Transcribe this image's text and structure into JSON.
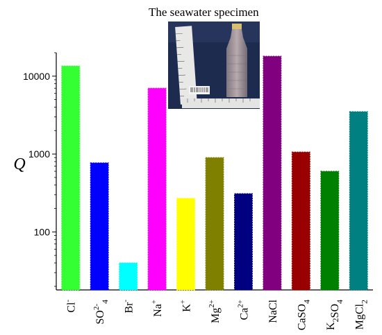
{
  "inset": {
    "title": "The seawater specimen"
  },
  "chart_data": {
    "type": "bar",
    "ylabel": "Q",
    "xlabel": "",
    "yscale": "log",
    "ylim": [
      18,
      20000
    ],
    "yticks": [
      {
        "value": 100,
        "label": "100"
      },
      {
        "value": 1000,
        "label": "1000"
      },
      {
        "value": 10000,
        "label": "10000"
      }
    ],
    "categories": [
      {
        "base": "Cl",
        "sup": "-",
        "sub": ""
      },
      {
        "base": "SO",
        "sup": "2-",
        "sub": "4"
      },
      {
        "base": "Br",
        "sup": "-",
        "sub": ""
      },
      {
        "base": "Na",
        "sup": "+",
        "sub": ""
      },
      {
        "base": "K",
        "sup": "+",
        "sub": ""
      },
      {
        "base": "Mg",
        "sup": "2+",
        "sub": ""
      },
      {
        "base": "Ca",
        "sup": "2+",
        "sub": ""
      },
      {
        "base": "NaCl",
        "sup": "",
        "sub": ""
      },
      {
        "base": "CaSO",
        "sup": "",
        "sub": "4"
      },
      {
        "base": "K2SO4",
        "sup": "",
        "sub": ""
      },
      {
        "base": "MgCl",
        "sup": "",
        "sub": "2"
      }
    ],
    "values": [
      13500,
      770,
      40,
      7000,
      270,
      900,
      310,
      18000,
      1060,
      600,
      3500
    ],
    "colors": [
      "#33ff33",
      "#0000ff",
      "#00ffff",
      "#ff00ff",
      "#ffff00",
      "#808000",
      "#000080",
      "#800080",
      "#990000",
      "#008000",
      "#008080"
    ],
    "grid": false,
    "legend": "none"
  }
}
